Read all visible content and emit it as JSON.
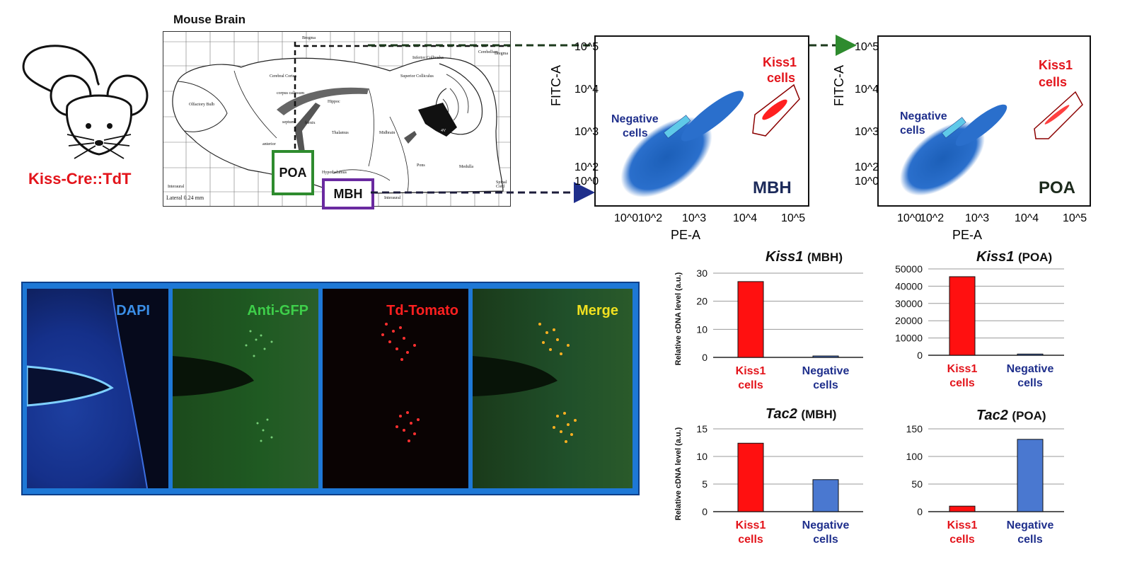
{
  "mouse": {
    "label": "Kiss-Cre::TdT"
  },
  "brain_atlas": {
    "title": "Mouse Brain",
    "lateral_label": "Lateral  0.24  mm",
    "bregma_label": "Bregma",
    "interaural_label": "Interaural",
    "regions": {
      "cerebral_cortex": "Cerebral Cortex",
      "corpus_callosum": "corpus callosum",
      "olfactory_bulb": "Olfactory Bulb",
      "septum": "septum",
      "thalamus": "Thalamus",
      "hippocampus": "Hippoc",
      "superior_colliculus": "Superior Colliculus",
      "inferior_colliculus": "Inferior Colliculus",
      "cerebellum": "Cerebellum",
      "midbrain": "Midbrain",
      "pons": "Pons",
      "medulla": "Medulla",
      "spinal_cord": "Spinal Cord",
      "hypothalamus": "Hypothalamus",
      "fornix": "fornix",
      "anterior": "anterior",
      "area": "Area",
      "ventricle_4": "4V"
    },
    "poa_label": "POA",
    "mbh_label": "MBH",
    "colors": {
      "poa_box": "#2e8b2e",
      "mbh_box": "#6a2aa0"
    }
  },
  "flow_panels": [
    {
      "region": "MBH",
      "y_axis_label": "FITC-A",
      "x_axis_label": "PE-A",
      "y_ticks": [
        "10^5",
        "10^4",
        "10^3",
        "10^2",
        "10^0"
      ],
      "x_ticks": [
        "10^0",
        "10^2",
        "10^3",
        "10^4",
        "10^5"
      ],
      "negative_label_1": "Negative",
      "negative_label_2": "cells",
      "kiss_label_1": "Kiss1",
      "kiss_label_2": "cells"
    },
    {
      "region": "POA",
      "y_axis_label": "FITC-A",
      "x_axis_label": "PE-A",
      "y_ticks": [
        "10^5",
        "10^4",
        "10^3",
        "10^2",
        "10^0"
      ],
      "x_ticks": [
        "10^0",
        "10^2",
        "10^3",
        "10^4",
        "10^5"
      ],
      "negative_label_1": "Negative",
      "negative_label_2": "cells",
      "kiss_label_1": "Kiss1",
      "kiss_label_2": "cells"
    }
  ],
  "microscopy": {
    "panels": [
      {
        "label": "DAPI",
        "color": "#3b8fe8"
      },
      {
        "label": "Anti-GFP",
        "color": "#3ecf4a"
      },
      {
        "label": "Td-Tomato",
        "color": "#ff2020"
      },
      {
        "label": "Merge",
        "color": "#f0e020"
      }
    ]
  },
  "chart_data": [
    {
      "type": "bar",
      "title_gene": "Kiss1",
      "title_region": "(MBH)",
      "ylabel": "Relative cDNA level (a.u.)",
      "categories": [
        [
          "Kiss1",
          "cells"
        ],
        [
          "Negative",
          "cells"
        ]
      ],
      "values": [
        27,
        0.5
      ],
      "ylim": [
        0,
        30
      ],
      "yticks": [
        0,
        10,
        20,
        30
      ],
      "colors": [
        "#ff1010",
        "#4a78d0"
      ]
    },
    {
      "type": "bar",
      "title_gene": "Kiss1",
      "title_region": "(POA)",
      "ylabel": "",
      "categories": [
        [
          "Kiss1",
          "cells"
        ],
        [
          "Negative",
          "cells"
        ]
      ],
      "values": [
        45500,
        700
      ],
      "ylim": [
        0,
        50000
      ],
      "yticks": [
        0,
        10000,
        20000,
        30000,
        40000,
        50000
      ],
      "colors": [
        "#ff1010",
        "#4a78d0"
      ]
    },
    {
      "type": "bar",
      "title_gene": "Tac2",
      "title_region": "(MBH)",
      "ylabel": "Relative cDNA level (a.u.)",
      "categories": [
        [
          "Kiss1",
          "cells"
        ],
        [
          "Negative",
          "cells"
        ]
      ],
      "values": [
        12.4,
        5.8
      ],
      "ylim": [
        0,
        15
      ],
      "yticks": [
        0,
        5,
        10,
        15
      ],
      "colors": [
        "#ff1010",
        "#4a78d0"
      ]
    },
    {
      "type": "bar",
      "title_gene": "Tac2",
      "title_region": "(POA)",
      "ylabel": "",
      "categories": [
        [
          "Kiss1",
          "cells"
        ],
        [
          "Negative",
          "cells"
        ]
      ],
      "values": [
        10,
        131
      ],
      "ylim": [
        0,
        150
      ],
      "yticks": [
        0,
        50,
        100,
        150
      ],
      "colors": [
        "#ff1010",
        "#4a78d0"
      ]
    }
  ]
}
